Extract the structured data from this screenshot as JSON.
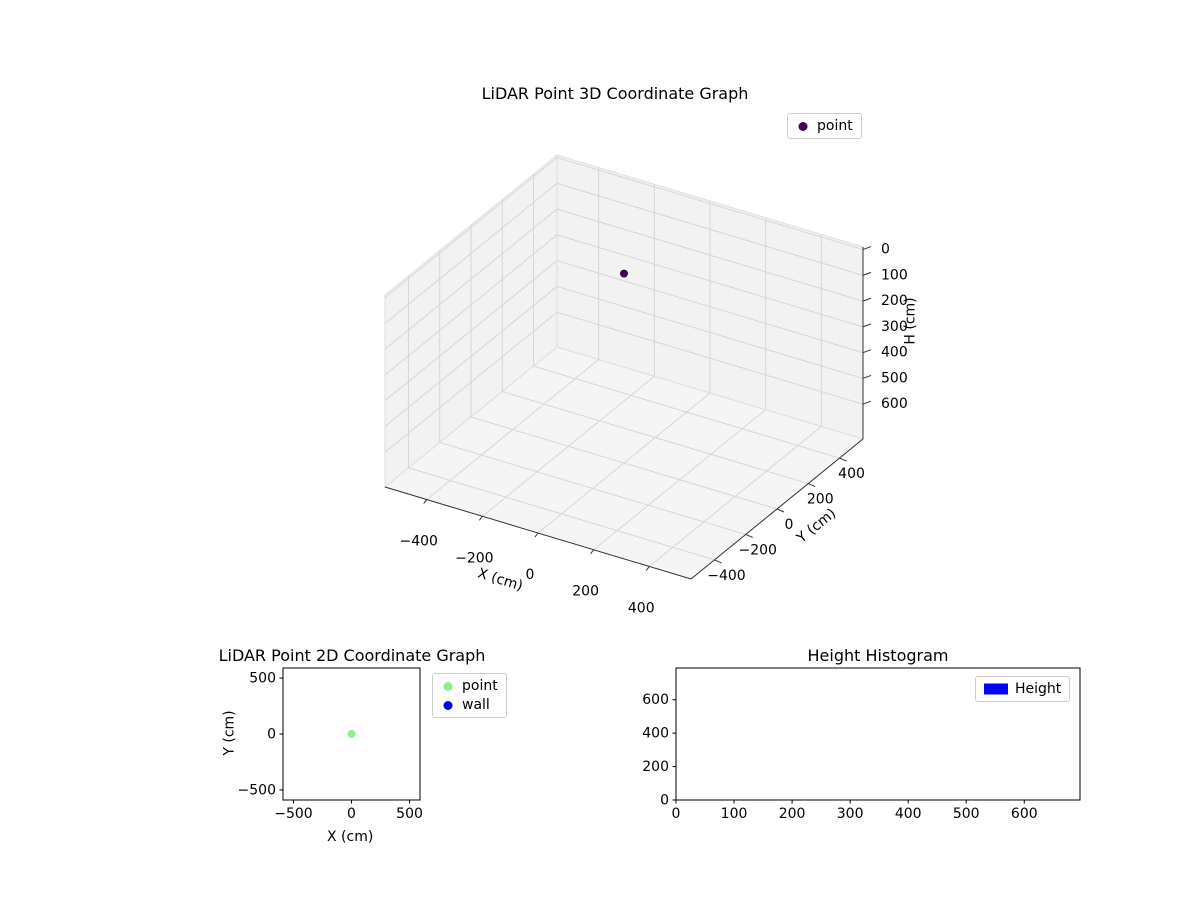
{
  "figure": {
    "background": "#ffffff"
  },
  "chart_data": [
    {
      "type": "scatter3d",
      "title": "LiDAR Point 3D Coordinate Graph",
      "xlabel": "X (cm)",
      "ylabel": "Y (cm)",
      "zlabel": "H (cm)",
      "xlim": [
        -550,
        550
      ],
      "ylim": [
        -550,
        550
      ],
      "zlim": [
        -10,
        735
      ],
      "zaxis_inverted": true,
      "xticks": [
        -400,
        -200,
        0,
        200,
        400
      ],
      "yticks": [
        -400,
        -200,
        0,
        200,
        400
      ],
      "zticks": [
        0,
        100,
        200,
        300,
        400,
        500,
        600
      ],
      "grid": true,
      "legend": {
        "position": "upper-right",
        "entries": [
          {
            "label": "point",
            "marker": "circle",
            "color": "#440154"
          }
        ]
      },
      "series": [
        {
          "name": "point",
          "marker": "circle",
          "color": "#440154",
          "points": [
            {
              "x": 0,
              "y": 0,
              "h": 0
            }
          ]
        }
      ]
    },
    {
      "type": "scatter",
      "title": "LiDAR Point 2D Coordinate Graph",
      "xlabel": "X (cm)",
      "ylabel": "Y (cm)",
      "xlim": [
        -590,
        590
      ],
      "ylim": [
        -590,
        590
      ],
      "xticks": [
        -500,
        0,
        500
      ],
      "yticks": [
        -500,
        0,
        500
      ],
      "grid": false,
      "legend": {
        "position": "outside-upper-right",
        "entries": [
          {
            "label": "point",
            "marker": "circle",
            "color": "#90ee90"
          },
          {
            "label": "wall",
            "marker": "circle",
            "color": "#0000ff"
          }
        ]
      },
      "series": [
        {
          "name": "point",
          "marker": "circle",
          "color": "#90ee90",
          "points": [
            {
              "x": 0,
              "y": 0
            }
          ]
        },
        {
          "name": "wall",
          "marker": "circle",
          "color": "#0000ff",
          "points": []
        }
      ]
    },
    {
      "type": "histogram",
      "title": "Height Histogram",
      "xlabel": "",
      "ylabel": "",
      "xlim": [
        0,
        696
      ],
      "ylim": [
        0,
        790
      ],
      "xticks": [
        0,
        100,
        200,
        300,
        400,
        500,
        600
      ],
      "yticks": [
        0,
        200,
        400,
        600
      ],
      "grid": false,
      "legend": {
        "position": "upper-right",
        "entries": [
          {
            "label": "Height",
            "marker": "rect",
            "color": "#0000ff"
          }
        ]
      },
      "bars": []
    }
  ]
}
